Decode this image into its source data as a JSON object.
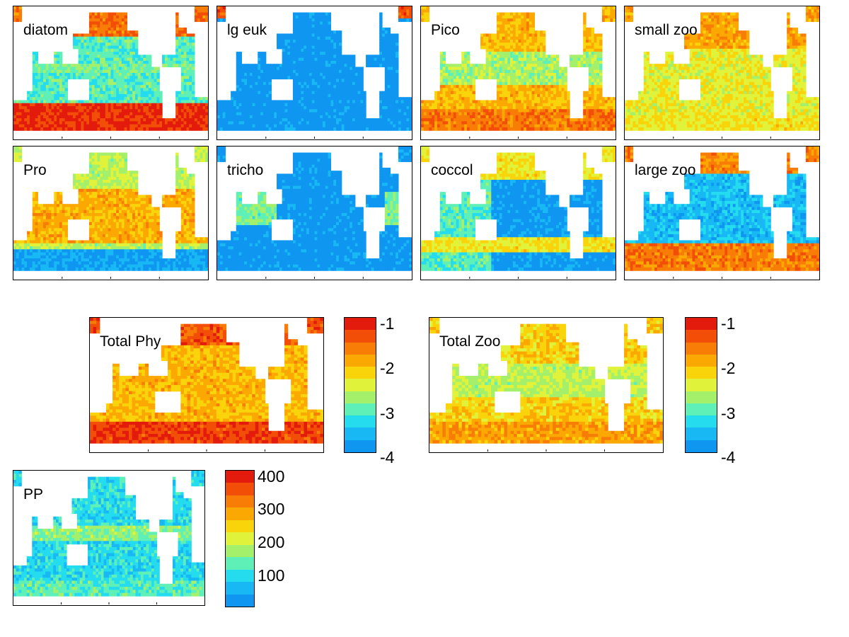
{
  "panels": [
    {
      "id": "diatom",
      "label": "diatom",
      "pattern": "diatom"
    },
    {
      "id": "lg_euk",
      "label": "lg euk",
      "pattern": "lgeuk"
    },
    {
      "id": "pico",
      "label": "Pico",
      "pattern": "pico"
    },
    {
      "id": "small_zoo",
      "label": "small zoo",
      "pattern": "smallzoo"
    },
    {
      "id": "pro",
      "label": "Pro",
      "pattern": "pro"
    },
    {
      "id": "tricho",
      "label": "tricho",
      "pattern": "tricho"
    },
    {
      "id": "coccol",
      "label": "coccol",
      "pattern": "coccol"
    },
    {
      "id": "large_zoo",
      "label": "large zoo",
      "pattern": "largezoo"
    },
    {
      "id": "total_phy",
      "label": "Total Phy",
      "pattern": "totalphy"
    },
    {
      "id": "total_zoo",
      "label": "Total Zoo",
      "pattern": "totalzoo"
    },
    {
      "id": "pp",
      "label": "PP",
      "pattern": "pp"
    }
  ],
  "colorbars": [
    {
      "id": "log_scale_a",
      "ticks": [
        "-1",
        "-2",
        "-3",
        "-4"
      ],
      "range": [
        -4,
        -1
      ]
    },
    {
      "id": "log_scale_b",
      "ticks": [
        "-1",
        "-2",
        "-3",
        "-4"
      ],
      "range": [
        -4,
        -1
      ]
    },
    {
      "id": "pp_scale",
      "ticks": [
        "400",
        "300",
        "200",
        "100"
      ],
      "range": [
        0,
        400
      ]
    }
  ],
  "colormap": [
    "#0f96f0",
    "#18b8f5",
    "#25dcef",
    "#5ff0b8",
    "#a4f06a",
    "#e0f33a",
    "#f9d40a",
    "#fba803",
    "#f87d06",
    "#f24e08",
    "#e31b0c"
  ],
  "chart_data": {
    "type": "heatmap",
    "description_of_scales": "log-scale biomass maps share a colorbar from -4 to -1; PP colorbar ranges 0 to 400",
    "colorbar_ranges": {
      "log_scale": [
        -4,
        -1
      ],
      "pp": [
        0,
        400
      ]
    },
    "grid": false
  }
}
